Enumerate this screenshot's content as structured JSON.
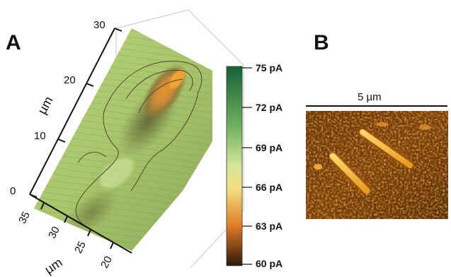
{
  "panel_a": {
    "letter": "A",
    "vertical_axis": {
      "unit": "µm",
      "ticks": [
        "0",
        "10",
        "20",
        "30"
      ]
    },
    "depth_axis": {
      "unit": "µm",
      "ticks": [
        "35",
        "30",
        "25",
        "20"
      ]
    }
  },
  "colorbar": {
    "labels": [
      "75 pA",
      "72 pA",
      "69 pA",
      "66 pA",
      "63 pA",
      "60 pA"
    ],
    "colors": [
      "#1a6b3a",
      "#5aa55a",
      "#b9d98a",
      "#f2e48c",
      "#e9892a",
      "#3a1f0a"
    ]
  },
  "panel_b": {
    "letter": "B",
    "scale_bar_label": "5 µm"
  }
}
